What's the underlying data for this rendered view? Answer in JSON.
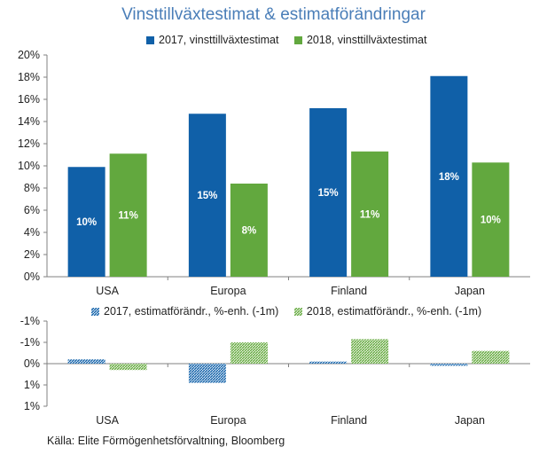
{
  "title": "Vinsttillväxtestimat & estimatförändringar",
  "source": "Källa: Elite Förmögenhetsförvaltning,  Bloomberg",
  "colors": {
    "blue": "#1060a8",
    "green": "#62a83e",
    "axis": "#808080"
  },
  "chart_data": [
    {
      "type": "bar",
      "title": "Vinsttillväxtestimat & estimatförändringar",
      "categories": [
        "USA",
        "Europa",
        "Finland",
        "Japan"
      ],
      "series": [
        {
          "name": "2017, vinsttillväxtestimat",
          "values": [
            9.9,
            14.7,
            15.2,
            18.1
          ],
          "labels": [
            "10%",
            "15%",
            "15%",
            "18%"
          ],
          "color": "#1060a8"
        },
        {
          "name": "2018, vinsttillväxtestimat",
          "values": [
            11.1,
            8.4,
            11.3,
            10.3
          ],
          "labels": [
            "11%",
            "8%",
            "11%",
            "10%"
          ],
          "color": "#62a83e"
        }
      ],
      "yticks": [
        "0%",
        "2%",
        "4%",
        "6%",
        "8%",
        "10%",
        "12%",
        "14%",
        "16%",
        "18%",
        "20%"
      ],
      "ylim": [
        0,
        20
      ],
      "legend": "top"
    },
    {
      "type": "bar",
      "categories": [
        "USA",
        "Europa",
        "Finland",
        "Japan"
      ],
      "series": [
        {
          "name": "2017, estimatförändr., %-enh. (-1m)",
          "values": [
            0.2,
            -0.9,
            0.1,
            -0.1
          ],
          "color": "#1060a8",
          "pattern": "hatched"
        },
        {
          "name": "2018, estimatförändr., %-enh. (-1m)",
          "values": [
            -0.3,
            1.0,
            1.15,
            0.6
          ],
          "color": "#62a83e",
          "pattern": "hatched"
        }
      ],
      "yticks": [
        "-1%",
        "-1%",
        "0%",
        "1%",
        "1%"
      ],
      "ylim": [
        -2,
        2
      ],
      "legend": "top"
    }
  ]
}
